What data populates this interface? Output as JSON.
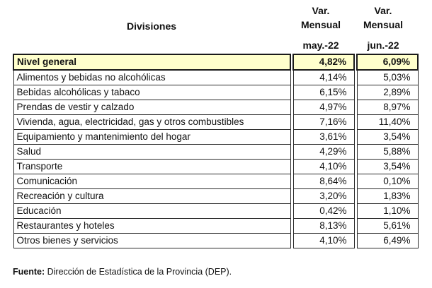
{
  "header": {
    "divisions_label": "Divisiones",
    "columns": [
      {
        "line1": "Var.",
        "line2": "Mensual",
        "period": "may.-22"
      },
      {
        "line1": "Var.",
        "line2": "Mensual",
        "period": "jun.-22"
      }
    ]
  },
  "rows": [
    {
      "label": "Nivel general",
      "may": "4,82%",
      "jun": "6,09%",
      "total": true
    },
    {
      "label": "Alimentos y bebidas no alcohólicas",
      "may": "4,14%",
      "jun": "5,03%"
    },
    {
      "label": "Bebidas alcohólicas y tabaco",
      "may": "6,15%",
      "jun": "2,89%"
    },
    {
      "label": "Prendas de vestir y calzado",
      "may": "4,97%",
      "jun": "8,97%"
    },
    {
      "label": "Vivienda, agua, electricidad, gas y otros combustibles",
      "may": "7,16%",
      "jun": "11,40%"
    },
    {
      "label": "Equipamiento y mantenimiento del hogar",
      "may": "3,61%",
      "jun": "3,54%"
    },
    {
      "label": "Salud",
      "may": "4,29%",
      "jun": "5,88%"
    },
    {
      "label": "Transporte",
      "may": "4,10%",
      "jun": "3,54%"
    },
    {
      "label": "Comunicación",
      "may": "8,64%",
      "jun": "0,10%"
    },
    {
      "label": "Recreación y cultura",
      "may": "3,20%",
      "jun": "1,83%"
    },
    {
      "label": "Educación",
      "may": "0,42%",
      "jun": "1,10%"
    },
    {
      "label": "Restaurantes y hoteles",
      "may": "8,13%",
      "jun": "5,61%"
    },
    {
      "label": "Otros bienes y servicios",
      "may": "4,10%",
      "jun": "6,49%"
    }
  ],
  "footer": {
    "source_label": "Fuente:",
    "source_text": " Dirección de Estadística de la Provincia (DEP)."
  },
  "colors": {
    "total_row_bg": "#ffffcc",
    "border": "#2a2a2a"
  }
}
